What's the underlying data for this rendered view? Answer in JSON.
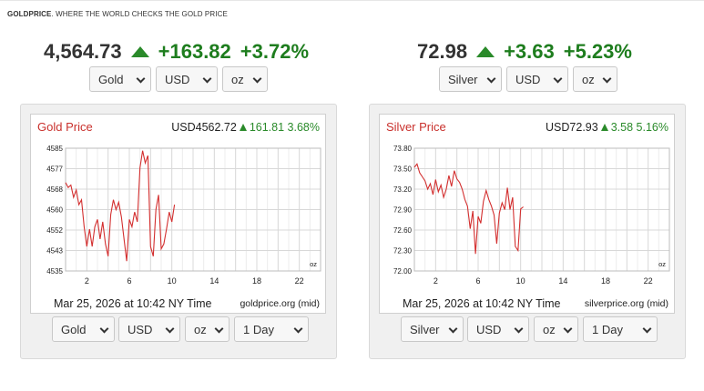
{
  "brand": {
    "name": "GOLDPRICE",
    "tagline": ". WHERE THE WORLD CHECKS THE GOLD PRICE"
  },
  "colors": {
    "up": "#1e7d1e",
    "series_line": "#d32f2f",
    "title_red": "#c9302c"
  },
  "header_gold": {
    "price": "4,564.73",
    "change": "+163.82",
    "change_pct": "+3.72%",
    "metal_select": "Gold",
    "currency_select": "USD",
    "unit_select": "oz"
  },
  "header_silver": {
    "price": "72.98",
    "change": "+3.63",
    "change_pct": "+5.23%",
    "metal_select": "Silver",
    "currency_select": "USD",
    "unit_select": "oz"
  },
  "gold_panel": {
    "title": "Gold Price",
    "price": "USD4562.72",
    "change": "161.81",
    "change_pct": "3.68%",
    "timestamp": "Mar 25, 2026 at 10:42 NY Time",
    "source": "goldprice.org (mid)",
    "unit_label": "oz",
    "controls": {
      "metal": "Gold",
      "currency": "USD",
      "unit": "oz",
      "range": "1 Day"
    }
  },
  "silver_panel": {
    "title": "Silver Price",
    "price": "USD72.93",
    "change": "3.58",
    "change_pct": "5.16%",
    "timestamp": "Mar 25, 2026 at 10:42 NY Time",
    "source": "silverprice.org (mid)",
    "unit_label": "oz",
    "controls": {
      "metal": "Silver",
      "currency": "USD",
      "unit": "oz",
      "range": "1 Day"
    }
  },
  "chart_data": [
    {
      "type": "line",
      "title": "Gold Price",
      "ylim": [
        4535,
        4585
      ],
      "y_ticks": [
        "4585",
        "4577",
        "4568",
        "4560",
        "4552",
        "4543",
        "4535"
      ],
      "xlim": [
        0,
        24
      ],
      "x_ticks": [
        "2",
        "6",
        "10",
        "14",
        "18",
        "22"
      ],
      "grid": true,
      "series": [
        {
          "x": [
            0.0,
            0.25,
            0.5,
            0.75,
            1.0,
            1.25,
            1.5,
            1.75,
            2.0,
            2.25,
            2.5,
            2.75,
            3.0,
            3.25,
            3.5,
            3.75,
            4.0,
            4.25,
            4.5,
            4.75,
            5.0,
            5.25,
            5.5,
            5.75,
            6.0,
            6.25,
            6.5,
            6.75,
            7.0,
            7.25,
            7.5,
            7.75,
            8.0,
            8.25,
            8.5,
            8.75,
            9.0,
            9.25,
            9.5,
            9.75,
            10.0,
            10.25
          ],
          "y": [
            4571,
            4569,
            4570,
            4565,
            4568,
            4562,
            4564,
            4553,
            4545,
            4552,
            4545,
            4553,
            4556,
            4548,
            4555,
            4546,
            4541,
            4558,
            4564,
            4560,
            4563,
            4557,
            4548,
            4539,
            4556,
            4553,
            4559,
            4555,
            4577,
            4584,
            4579,
            4582,
            4545,
            4541,
            4560,
            4566,
            4544,
            4546,
            4552,
            4559,
            4555,
            4562
          ]
        }
      ]
    },
    {
      "type": "line",
      "title": "Silver Price",
      "ylim": [
        72.0,
        73.8
      ],
      "y_ticks": [
        "73.80",
        "73.50",
        "73.20",
        "72.90",
        "72.60",
        "72.30",
        "72.00"
      ],
      "xlim": [
        0,
        24
      ],
      "x_ticks": [
        "2",
        "6",
        "10",
        "14",
        "18",
        "22"
      ],
      "grid": true,
      "series": [
        {
          "x": [
            0.0,
            0.25,
            0.5,
            0.75,
            1.0,
            1.25,
            1.5,
            1.75,
            2.0,
            2.25,
            2.5,
            2.75,
            3.0,
            3.25,
            3.5,
            3.75,
            4.0,
            4.25,
            4.5,
            4.75,
            5.0,
            5.25,
            5.5,
            5.75,
            6.0,
            6.25,
            6.5,
            6.75,
            7.0,
            7.25,
            7.5,
            7.75,
            8.0,
            8.25,
            8.5,
            8.75,
            9.0,
            9.25,
            9.5,
            9.75,
            10.0,
            10.25
          ],
          "y": [
            73.52,
            73.57,
            73.44,
            73.38,
            73.32,
            73.2,
            73.28,
            73.12,
            73.34,
            73.16,
            73.26,
            73.08,
            73.2,
            73.4,
            73.24,
            73.47,
            73.35,
            73.3,
            73.2,
            73.05,
            72.95,
            72.62,
            72.88,
            72.25,
            72.8,
            72.7,
            73.02,
            73.18,
            73.05,
            72.95,
            72.82,
            72.4,
            72.85,
            73.0,
            72.9,
            73.22,
            72.9,
            73.08,
            72.36,
            72.3,
            72.91,
            72.94
          ]
        }
      ]
    }
  ]
}
